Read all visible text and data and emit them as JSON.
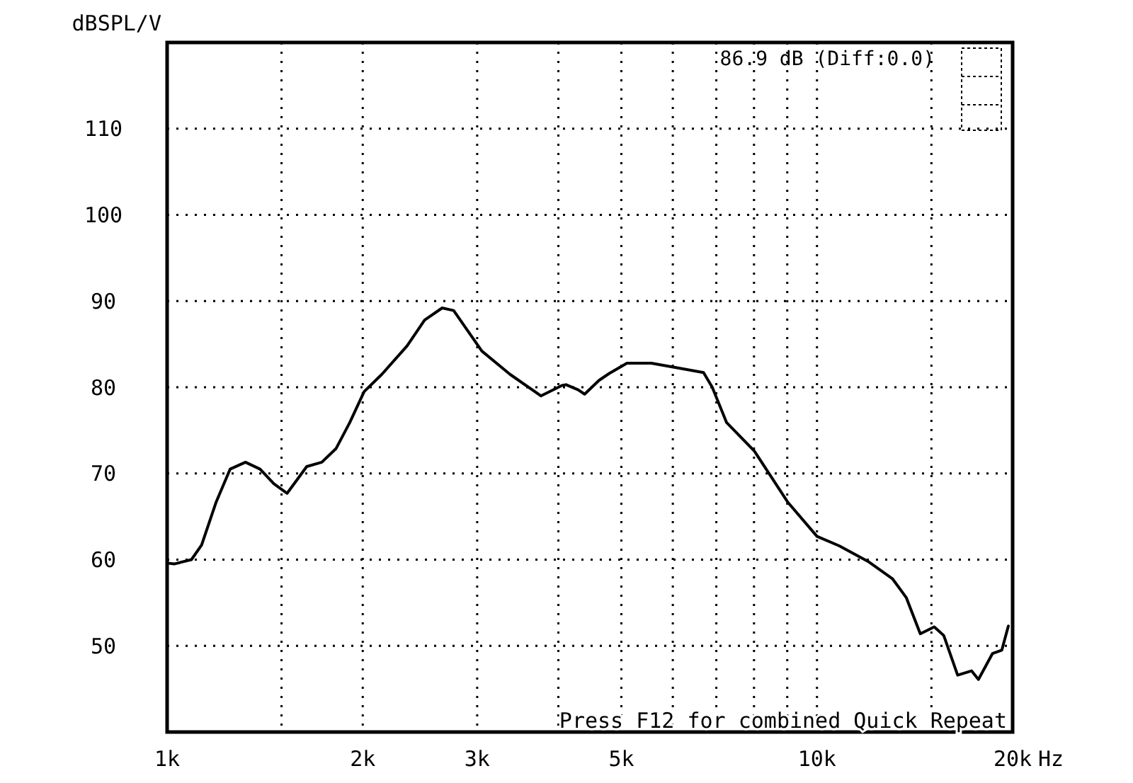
{
  "chart_data": {
    "type": "line",
    "ylabel": "dBSPL/V",
    "xlabel": "Hz",
    "log": "x",
    "grid": true,
    "line_style": "solid",
    "marker": "none",
    "xlim": [
      1000,
      20000
    ],
    "ylim": [
      40,
      120
    ],
    "xticks": [
      {
        "value": 1000,
        "label": "1k"
      },
      {
        "value": 1500,
        "label": null
      },
      {
        "value": 2000,
        "label": "2k"
      },
      {
        "value": 3000,
        "label": "3k"
      },
      {
        "value": 4000,
        "label": null
      },
      {
        "value": 5000,
        "label": "5k"
      },
      {
        "value": 6000,
        "label": null
      },
      {
        "value": 7000,
        "label": null
      },
      {
        "value": 8000,
        "label": null
      },
      {
        "value": 9000,
        "label": null
      },
      {
        "value": 10000,
        "label": "10k"
      },
      {
        "value": 15000,
        "label": null
      },
      {
        "value": 20000,
        "label": "20k"
      }
    ],
    "yticks": [
      {
        "value": 50,
        "label": "50"
      },
      {
        "value": 60,
        "label": "60"
      },
      {
        "value": 70,
        "label": "70"
      },
      {
        "value": 80,
        "label": "80"
      },
      {
        "value": 90,
        "label": "90"
      },
      {
        "value": 100,
        "label": "100"
      },
      {
        "value": 110,
        "label": "110"
      }
    ],
    "annotations": [
      "86.9 dB (Diff:0.0)",
      "Press F12 for combined Quick Repeat"
    ],
    "x": [
      1000,
      1025,
      1090,
      1130,
      1190,
      1250,
      1320,
      1390,
      1460,
      1530,
      1640,
      1730,
      1820,
      1910,
      2010,
      2140,
      2340,
      2490,
      2650,
      2760,
      3050,
      3370,
      3760,
      4050,
      4110,
      4290,
      4390,
      4620,
      4790,
      5100,
      5560,
      6050,
      6690,
      6900,
      7260,
      8010,
      9010,
      10000,
      10820,
      11980,
      13060,
      13720,
      14420,
      15150,
      15670,
      16460,
      17290,
      17720,
      18620,
      19250,
      19700
    ],
    "series": [
      {
        "color": "#000000",
        "values": [
          59.6,
          59.5,
          60,
          61.7,
          66.7,
          70.5,
          71.3,
          70.5,
          68.8,
          67.7,
          70.8,
          71.3,
          72.9,
          75.9,
          79.5,
          81.5,
          84.8,
          87.8,
          89.2,
          88.9,
          84.2,
          81.5,
          79,
          80.2,
          80.3,
          79.7,
          79.2,
          80.8,
          81.6,
          82.8,
          82.8,
          82.3,
          81.7,
          80,
          75.9,
          72.6,
          66.7,
          62.7,
          61.6,
          59.8,
          57.8,
          55.6,
          51.4,
          52.2,
          51.2,
          46.6,
          47.1,
          46.1,
          49.1,
          49.5,
          52.3
        ]
      }
    ]
  }
}
